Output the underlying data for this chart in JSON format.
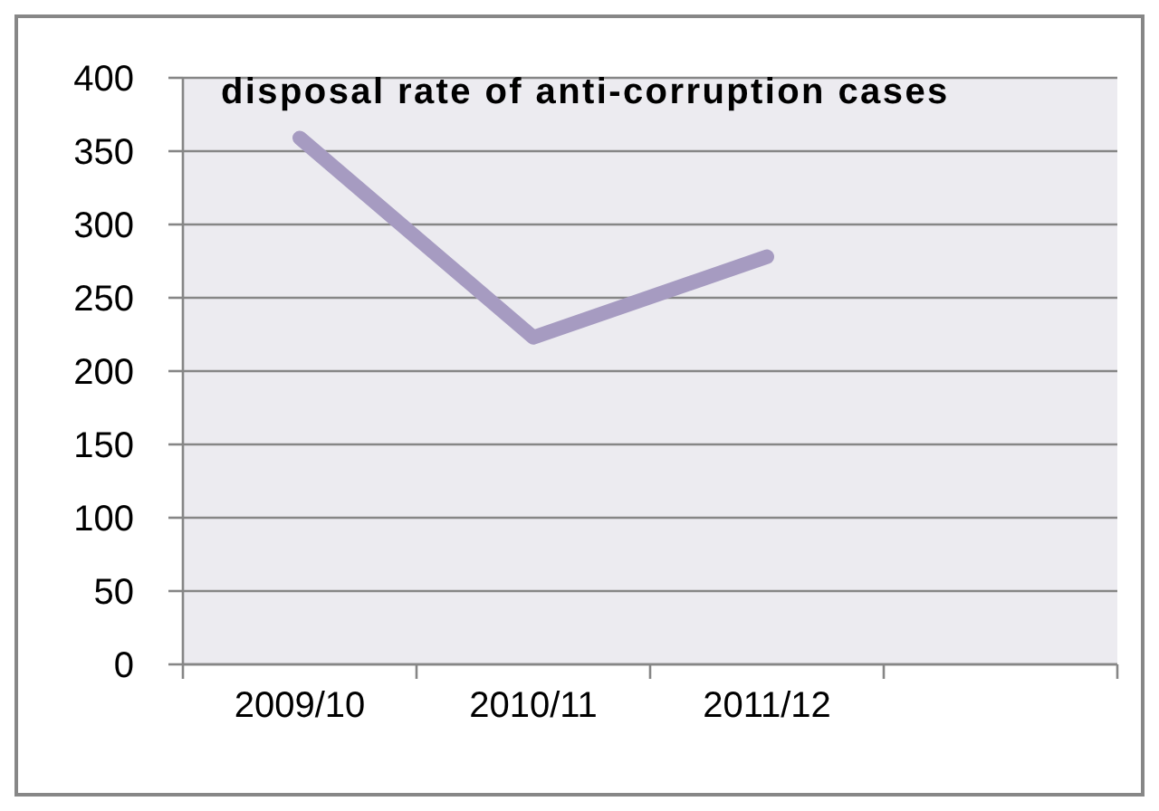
{
  "chart_data": {
    "type": "line",
    "title": "disposal rate of anti-corruption cases",
    "categories": [
      "2009/10",
      "2010/11",
      "2011/12",
      null
    ],
    "series": [
      {
        "color": "#a69bc1",
        "values": [
          359,
          223,
          278,
          null
        ]
      }
    ],
    "ylim": [
      0,
      400
    ],
    "yticks": [
      0,
      50,
      100,
      150,
      200,
      250,
      300,
      350,
      400
    ],
    "grid": "y",
    "marker": "none",
    "line_style": "solid"
  }
}
